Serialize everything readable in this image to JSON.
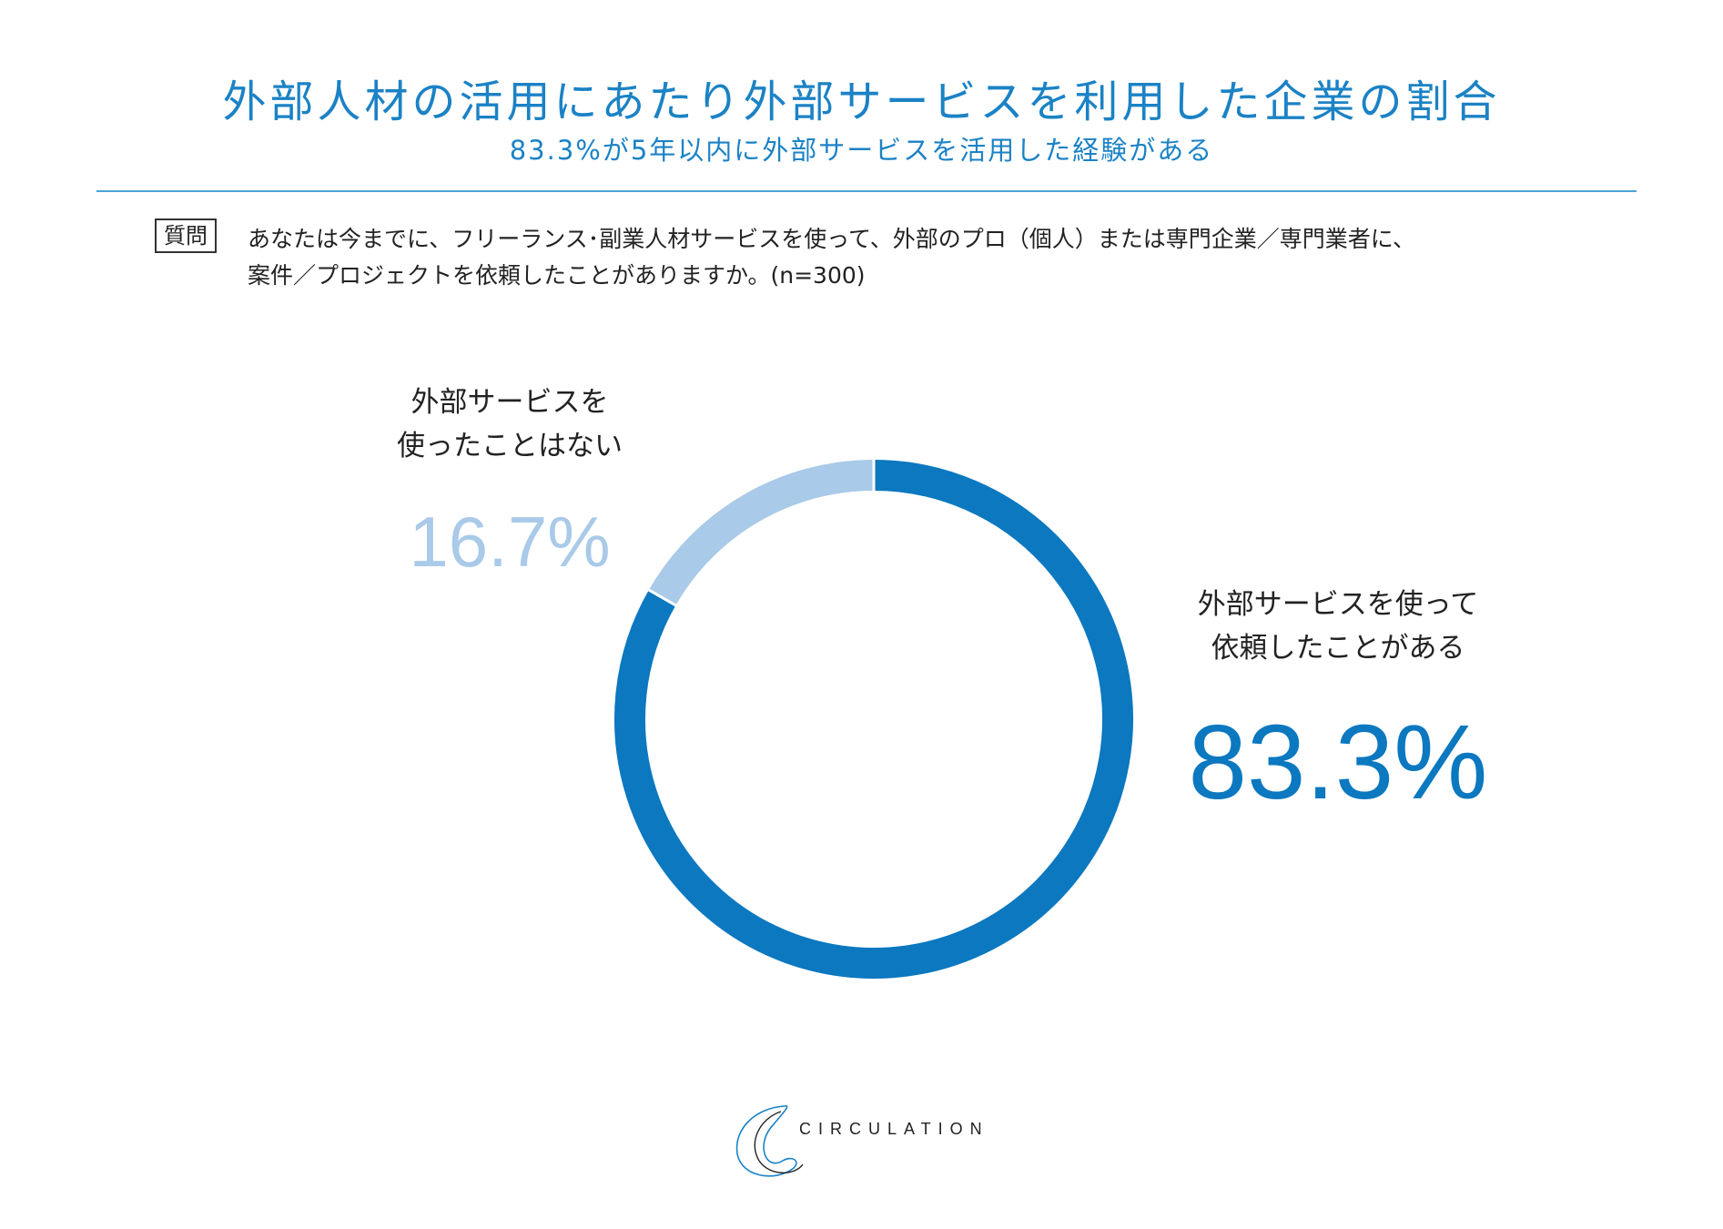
{
  "title": "外部人材の活用にあたり外部サービスを利用した企業の割合",
  "subtitle": "83.3%が5年以内に外部サービスを活用した経験がある",
  "question": {
    "badge": "質問",
    "line1": "あなたは今までに、フリーランス･副業人材サービスを使って、外部のプロ（個人）または専門企業／専門業者に、",
    "line2": "案件／プロジェクトを依頼したことがありますか。(n=300)"
  },
  "labels": {
    "not_used_line1": "外部サービスを",
    "not_used_line2": "使ったことはない",
    "not_used_pct": "16.7%",
    "used_line1": "外部サービスを使って",
    "used_line2": "依頼したことがある",
    "used_pct": "83.3%"
  },
  "logo": {
    "text": "CIRCULATION"
  },
  "colors": {
    "accent": "#1b82c5",
    "used": "#0b78c0",
    "not_used": "#a9cae8"
  },
  "chart_data": {
    "type": "pie",
    "style": "donut",
    "title": "",
    "categories": [
      "外部サービスを使って依頼したことがある",
      "外部サービスを使ったことはない"
    ],
    "values": [
      83.3,
      16.7
    ],
    "unit": "%",
    "n": 300,
    "start": "top, clockwise"
  }
}
